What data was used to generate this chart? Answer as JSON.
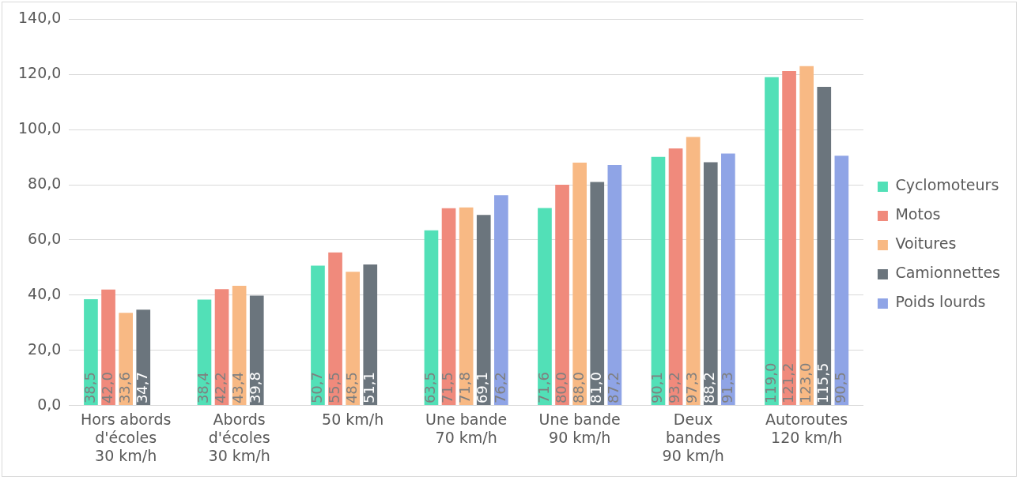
{
  "chart_data": {
    "type": "bar",
    "categories": [
      "Hors abords\nd'écoles\n30 km/h",
      "Abords\nd'écoles\n30 km/h",
      "50 km/h",
      "Une bande\n70 km/h",
      "Une bande\n90 km/h",
      "Deux\nbandes\n90 km/h",
      "Autoroutes\n120 km/h"
    ],
    "series": [
      {
        "name": "Cyclomoteurs",
        "color": "#52e0b7",
        "values": [
          38.5,
          38.4,
          50.7,
          63.5,
          71.6,
          90.1,
          119.0
        ],
        "value_labels": [
          "38,5",
          "38,4",
          "50,7",
          "63,5",
          "71,6",
          "90,1",
          "119,0"
        ]
      },
      {
        "name": "Motos",
        "color": "#f08a7c",
        "values": [
          42.0,
          42.2,
          55.5,
          71.5,
          80.0,
          93.2,
          121.2
        ],
        "value_labels": [
          "42,0",
          "42,2",
          "55,5",
          "71,5",
          "80,0",
          "93,2",
          "121,2"
        ]
      },
      {
        "name": "Voitures",
        "color": "#f8b984",
        "values": [
          33.6,
          43.4,
          48.5,
          71.8,
          88.0,
          97.3,
          123.0
        ],
        "value_labels": [
          "33,6",
          "43,4",
          "48,5",
          "71,8",
          "88,0",
          "97,3",
          "123,0"
        ]
      },
      {
        "name": "Camionnettes",
        "color": "#6b757d",
        "values": [
          34.7,
          39.8,
          51.1,
          69.1,
          81.0,
          88.2,
          115.5
        ],
        "value_labels": [
          "34,7",
          "39,8",
          "51,1",
          "69,1",
          "81,0",
          "88,2",
          "115,5"
        ]
      },
      {
        "name": "Poids lourds",
        "color": "#8fa4e6",
        "values": [
          null,
          null,
          null,
          76.2,
          87.2,
          91.3,
          90.5
        ],
        "value_labels": [
          null,
          null,
          null,
          "76,2",
          "87,2",
          "91,3",
          "90,5"
        ]
      }
    ],
    "ylim": [
      0,
      140
    ],
    "yticks": [
      {
        "value": 0,
        "label": "0,0"
      },
      {
        "value": 20,
        "label": "20,0"
      },
      {
        "value": 40,
        "label": "40,0"
      },
      {
        "value": 60,
        "label": "60,0"
      },
      {
        "value": 80,
        "label": "80,0"
      },
      {
        "value": 100,
        "label": "100,0"
      },
      {
        "value": 120,
        "label": "120,0"
      },
      {
        "value": 140,
        "label": "140,0"
      }
    ],
    "grid": "y",
    "legend": "right"
  }
}
